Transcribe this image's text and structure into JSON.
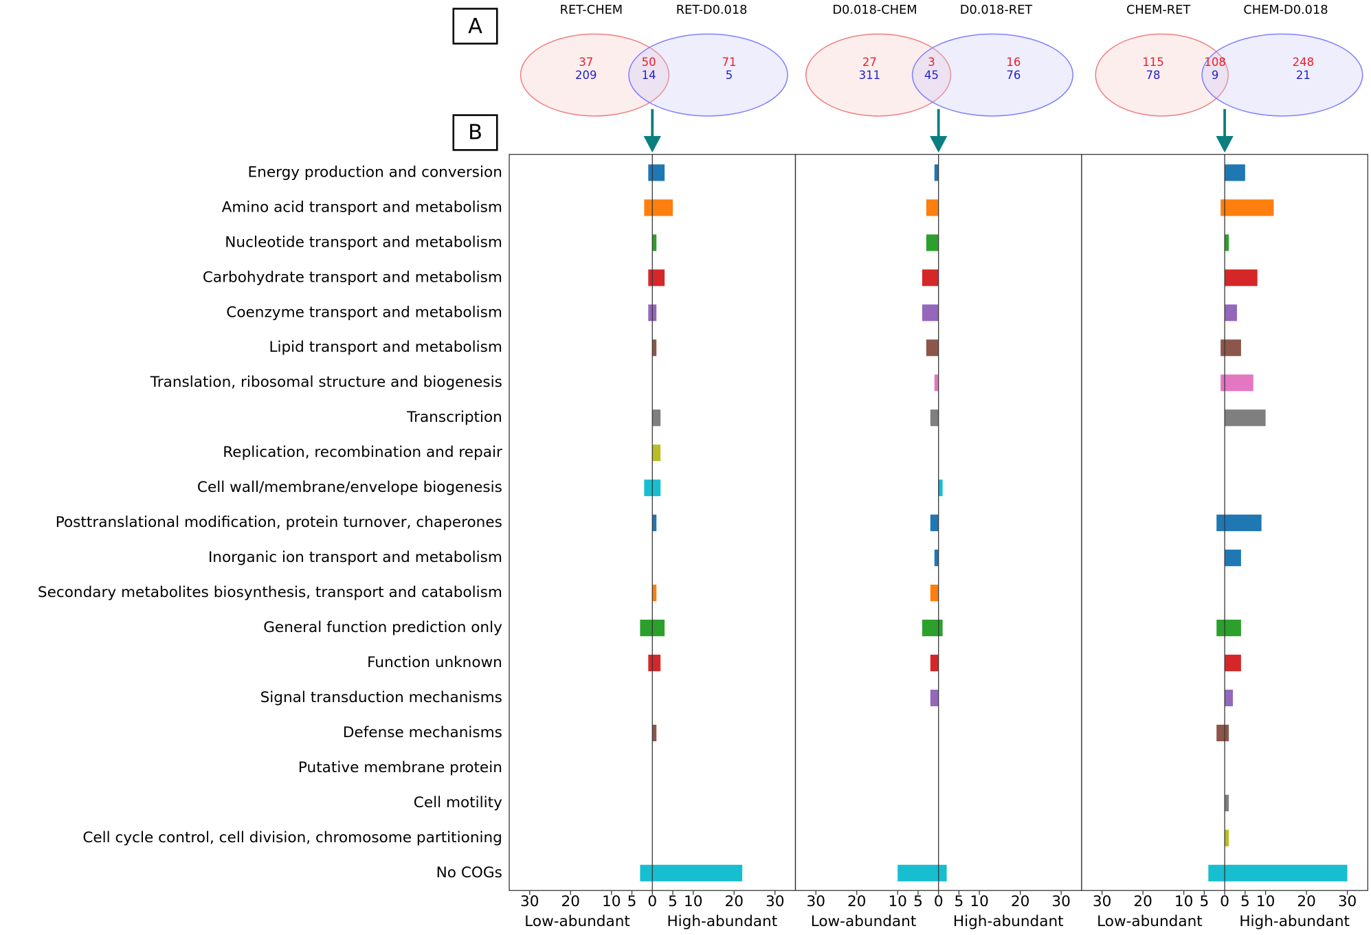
{
  "panel_labels": [
    "A",
    "B"
  ],
  "chart_data": [
    {
      "type": "bar",
      "orientation": "horizontal",
      "categories": [
        "Energy production and conversion",
        "Amino acid transport and metabolism",
        "Nucleotide transport and metabolism",
        "Carbohydrate transport and metabolism",
        "Coenzyme transport and metabolism",
        "Lipid transport and metabolism",
        "Translation, ribosomal structure and biogenesis",
        "Transcription",
        "Replication, recombination and repair",
        "Cell wall/membrane/envelope biogenesis",
        "Posttranslational modification, protein turnover, chaperones",
        "Inorganic ion transport and metabolism",
        "Secondary metabolites biosynthesis, transport and catabolism",
        "General function prediction only",
        "Function unknown",
        "Signal transduction mechanisms",
        "Defense mechanisms",
        "Putative membrane protein",
        "Cell motility",
        "Cell cycle control, cell division, chromosome partitioning",
        "No COGs"
      ],
      "colors": [
        "#1f77b4",
        "#ff7f0e",
        "#2ca02c",
        "#d62728",
        "#9467bd",
        "#8c564b",
        "#e377c2",
        "#7f7f7f",
        "#bcbd22",
        "#17becf",
        "#1f77b4",
        "#1f77b4",
        "#ff7f0e",
        "#2ca02c",
        "#d62728",
        "#9467bd",
        "#8c564b",
        "#e377c2",
        "#7f7f7f",
        "#bcbd22",
        "#17becf"
      ],
      "series": [
        {
          "name": "Low-abundant",
          "values": [
            -1,
            -2,
            0,
            -1,
            -1,
            0,
            0,
            0,
            0,
            -2,
            0,
            0,
            0,
            -3,
            -1,
            0,
            0,
            0,
            0,
            0,
            -3
          ]
        },
        {
          "name": "High-abundant",
          "values": [
            3,
            5,
            1,
            3,
            1,
            1,
            0,
            2,
            2,
            2,
            1,
            0,
            1,
            3,
            2,
            0,
            1,
            0,
            0,
            0,
            22
          ]
        }
      ],
      "xlim": [
        -35,
        35
      ],
      "xticks": [
        {
          "value": -30,
          "label": "30"
        },
        {
          "value": -20,
          "label": "20"
        },
        {
          "value": -10,
          "label": "10"
        },
        {
          "value": -5,
          "label": "5"
        },
        0,
        5,
        10,
        20,
        30
      ],
      "venn": {
        "labels": [
          "RET-CHEM",
          "RET-D0.018"
        ],
        "left": [
          37,
          209
        ],
        "overlap": [
          50,
          14
        ],
        "right": [
          71,
          5
        ]
      }
    },
    {
      "type": "bar",
      "orientation": "horizontal",
      "series": [
        {
          "name": "Low-abundant",
          "values": [
            -1,
            -3,
            -3,
            -4,
            -4,
            -3,
            -1,
            -2,
            0,
            0,
            -2,
            -1,
            -2,
            -4,
            -2,
            -2,
            0,
            0,
            0,
            0,
            -10
          ]
        },
        {
          "name": "High-abundant",
          "values": [
            0,
            0,
            0,
            0,
            0,
            0,
            0,
            0,
            0,
            1,
            0,
            0,
            0,
            1,
            0,
            0,
            0,
            0,
            0,
            0,
            2
          ]
        }
      ],
      "xlim": [
        -35,
        35
      ],
      "xticks": [
        {
          "value": -30,
          "label": "30"
        },
        {
          "value": -20,
          "label": "20"
        },
        {
          "value": -10,
          "label": "10"
        },
        {
          "value": -5,
          "label": "5"
        },
        0,
        5,
        10,
        20,
        30
      ],
      "venn": {
        "labels": [
          "D0.018-CHEM",
          "D0.018-RET"
        ],
        "left": [
          27,
          311
        ],
        "overlap": [
          3,
          45
        ],
        "right": [
          16,
          76
        ]
      }
    },
    {
      "type": "bar",
      "orientation": "horizontal",
      "series": [
        {
          "name": "Low-abundant",
          "values": [
            0,
            -1,
            0,
            0,
            0,
            -1,
            -1,
            0,
            0,
            0,
            -2,
            0,
            0,
            -2,
            0,
            0,
            -2,
            0,
            0,
            0,
            -4
          ]
        },
        {
          "name": "High-abundant",
          "values": [
            5,
            12,
            1,
            8,
            3,
            4,
            7,
            10,
            0,
            0,
            9,
            4,
            0,
            4,
            4,
            2,
            1,
            0,
            1,
            1,
            30
          ]
        }
      ],
      "xlim": [
        -35,
        35
      ],
      "xticks": [
        {
          "value": -30,
          "label": "30"
        },
        {
          "value": -20,
          "label": "20"
        },
        {
          "value": -10,
          "label": "10"
        },
        {
          "value": -5,
          "label": "5"
        },
        0,
        5,
        10,
        20,
        30
      ],
      "venn": {
        "labels": [
          "CHEM-RET",
          "CHEM-D0.018"
        ],
        "left": [
          115,
          78
        ],
        "overlap": [
          108,
          9
        ],
        "right": [
          248,
          21
        ]
      }
    }
  ]
}
